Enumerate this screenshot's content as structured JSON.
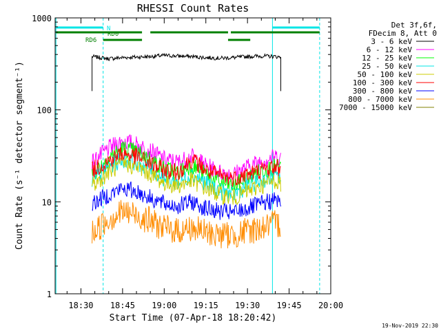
{
  "chart_data": {
    "type": "line",
    "title": "RHESSI Count Rates",
    "xlabel": "Start Time (07-Apr-18 18:20:42)",
    "ylabel": "Count Rate (s⁻¹ detector segment⁻¹)",
    "y_scale": "log",
    "xlim": [
      "18:20:42",
      "20:00:00"
    ],
    "ylim": [
      1,
      1000
    ],
    "x_ticks": [
      "18:30",
      "18:45",
      "19:00",
      "19:15",
      "19:30",
      "19:45",
      "20:00"
    ],
    "y_ticks": [
      "1",
      "10",
      "100",
      "1000"
    ],
    "legend": {
      "placement": "outside-right",
      "header": [
        "Det 3f,6f,",
        "FDecim 8, Att 0"
      ]
    },
    "series": [
      {
        "name": "3 - 6 keV",
        "color": "#000000",
        "x": [
          "18:34",
          "18:40",
          "18:45",
          "18:50",
          "18:55",
          "19:00",
          "19:05",
          "19:10",
          "19:15",
          "19:20",
          "19:25",
          "19:30",
          "19:35",
          "19:40",
          "19:42"
        ],
        "y": [
          380,
          360,
          370,
          375,
          380,
          390,
          385,
          380,
          370,
          365,
          370,
          380,
          385,
          380,
          375
        ]
      },
      {
        "name": "6 - 12 keV",
        "color": "#ff00ff",
        "x": [
          "18:34",
          "18:40",
          "18:45",
          "18:50",
          "18:55",
          "19:00",
          "19:05",
          "19:10",
          "19:15",
          "19:20",
          "19:25",
          "19:30",
          "19:35",
          "19:40",
          "19:42"
        ],
        "y": [
          27,
          38,
          46,
          42,
          36,
          29,
          27,
          31,
          25,
          21,
          20,
          24,
          28,
          31,
          30
        ]
      },
      {
        "name": "12 - 25 keV",
        "color": "#00ff00",
        "x": [
          "18:34",
          "18:40",
          "18:45",
          "18:50",
          "18:55",
          "19:00",
          "19:05",
          "19:10",
          "19:15",
          "19:20",
          "19:25",
          "19:30",
          "19:35",
          "19:40",
          "19:42"
        ],
        "y": [
          20,
          30,
          38,
          35,
          29,
          23,
          21,
          25,
          20,
          16,
          15,
          18,
          22,
          24,
          23
        ]
      },
      {
        "name": "25 - 50 keV",
        "color": "#00e5e5",
        "x": [
          "18:34",
          "18:40",
          "18:45",
          "18:50",
          "18:55",
          "19:00",
          "19:05",
          "19:10",
          "19:15",
          "19:20",
          "19:25",
          "19:30",
          "19:35",
          "19:40",
          "19:42"
        ],
        "y": [
          17,
          24,
          29,
          27,
          23,
          18,
          16,
          20,
          16,
          13,
          12,
          15,
          17,
          19,
          18
        ]
      },
      {
        "name": "50 - 100 keV",
        "color": "#cccc00",
        "x": [
          "18:34",
          "18:40",
          "18:45",
          "18:50",
          "18:55",
          "19:00",
          "19:05",
          "19:10",
          "19:15",
          "19:20",
          "19:25",
          "19:30",
          "19:35",
          "19:40",
          "19:42"
        ],
        "y": [
          15,
          21,
          26,
          24,
          20,
          16,
          15,
          17,
          14,
          12,
          11,
          13,
          15,
          17,
          16
        ]
      },
      {
        "name": "100 - 300 keV",
        "color": "#ff0000",
        "x": [
          "18:34",
          "18:40",
          "18:45",
          "18:50",
          "18:55",
          "19:00",
          "19:05",
          "19:10",
          "19:15",
          "19:20",
          "19:25",
          "19:30",
          "19:35",
          "19:40",
          "19:42"
        ],
        "y": [
          22,
          28,
          34,
          31,
          26,
          22,
          21,
          29,
          22,
          19,
          18,
          20,
          22,
          24,
          23
        ]
      },
      {
        "name": "300 - 800 keV",
        "color": "#0000ff",
        "x": [
          "18:34",
          "18:40",
          "18:45",
          "18:50",
          "18:55",
          "19:00",
          "19:05",
          "19:10",
          "19:15",
          "19:20",
          "19:25",
          "19:30",
          "19:35",
          "19:40",
          "19:42"
        ],
        "y": [
          9.5,
          12,
          14,
          13,
          11,
          9.5,
          9,
          10,
          8.5,
          7.8,
          7.6,
          8.5,
          9.5,
          10.5,
          10
        ]
      },
      {
        "name": "800 - 7000 keV",
        "color": "#ff8c00",
        "x": [
          "18:34",
          "18:40",
          "18:45",
          "18:50",
          "18:55",
          "19:00",
          "19:05",
          "19:10",
          "19:15",
          "19:20",
          "19:25",
          "19:30",
          "19:35",
          "19:40",
          "19:42"
        ],
        "y": [
          4.5,
          6.5,
          7.8,
          7.2,
          6.2,
          5.2,
          4.8,
          5.2,
          4.6,
          4.4,
          4.3,
          4.8,
          5.2,
          5.8,
          5.6
        ]
      },
      {
        "name": "7000 - 15000 keV",
        "color": "#808000",
        "x": [],
        "y": []
      }
    ],
    "vertical_lines": [
      {
        "x": "18:21",
        "color": "#00e5e5",
        "style": "solid"
      },
      {
        "x": "18:38",
        "color": "#00e5e5",
        "style": "dashed"
      },
      {
        "x": "19:39",
        "color": "#00e5e5",
        "style": "solid"
      },
      {
        "x": "19:56",
        "color": "#00e5e5",
        "style": "dashed"
      }
    ],
    "flag_bars": [
      {
        "label": "N",
        "color": "#00e5e5",
        "spans": [
          [
            "18:21",
            "18:38"
          ],
          [
            "19:39",
            "19:56"
          ]
        ],
        "row": 0
      },
      {
        "label": "RD0",
        "color": "#008000",
        "spans": [
          [
            "18:21",
            "18:52"
          ],
          [
            "18:55",
            "19:23"
          ],
          [
            "19:24",
            "19:56"
          ]
        ],
        "row": 1
      },
      {
        "label": "RD6",
        "color": "#008000",
        "spans": [
          [
            "18:38",
            "18:52"
          ],
          [
            "19:23",
            "19:31"
          ]
        ],
        "row": 2
      }
    ],
    "gap_after": "19:42"
  },
  "footer": {
    "timestamp": "19-Nov-2019 22:30"
  }
}
